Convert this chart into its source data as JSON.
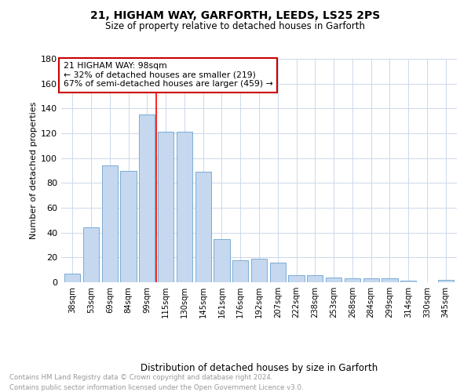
{
  "title1": "21, HIGHAM WAY, GARFORTH, LEEDS, LS25 2PS",
  "title2": "Size of property relative to detached houses in Garforth",
  "xlabel": "Distribution of detached houses by size in Garforth",
  "ylabel": "Number of detached properties",
  "categories": [
    "38sqm",
    "53sqm",
    "69sqm",
    "84sqm",
    "99sqm",
    "115sqm",
    "130sqm",
    "145sqm",
    "161sqm",
    "176sqm",
    "192sqm",
    "207sqm",
    "222sqm",
    "238sqm",
    "253sqm",
    "268sqm",
    "284sqm",
    "299sqm",
    "314sqm",
    "330sqm",
    "345sqm"
  ],
  "values": [
    7,
    44,
    94,
    90,
    135,
    121,
    121,
    89,
    35,
    18,
    19,
    16,
    6,
    6,
    4,
    3,
    3,
    3,
    1,
    0,
    2
  ],
  "bar_color": "#c5d8ef",
  "bar_edge_color": "#7aadd4",
  "red_line_x": 4.5,
  "annotation_line1": "21 HIGHAM WAY: 98sqm",
  "annotation_line2": "← 32% of detached houses are smaller (219)",
  "annotation_line3": "67% of semi-detached houses are larger (459) →",
  "annotation_box_color": "#ffffff",
  "annotation_box_edge_color": "#cc0000",
  "ylim": [
    0,
    180
  ],
  "yticks": [
    0,
    20,
    40,
    60,
    80,
    100,
    120,
    140,
    160,
    180
  ],
  "background_color": "#ffffff",
  "grid_color": "#cdd8ea",
  "footer1": "Contains HM Land Registry data © Crown copyright and database right 2024.",
  "footer2": "Contains public sector information licensed under the Open Government Licence v3.0."
}
